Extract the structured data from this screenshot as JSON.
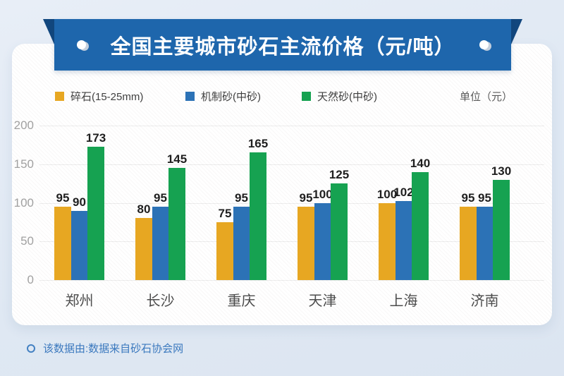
{
  "banner": {
    "title": "全国主要城市砂石主流价格（元/吨）",
    "bg_color": "#1e66ac",
    "fold_color": "#12477e"
  },
  "legend": {
    "items": [
      {
        "label": "碎石(15-25mm)",
        "color": "#e7a722"
      },
      {
        "label": "机制砂(中砂)",
        "color": "#2c72b6"
      },
      {
        "label": "天然砂(中砂)",
        "color": "#16a251"
      }
    ],
    "unit_label": "单位（元）"
  },
  "chart_data": {
    "type": "bar",
    "title": "全国主要城市砂石主流价格（元/吨）",
    "categories": [
      "郑州",
      "长沙",
      "重庆",
      "天津",
      "上海",
      "济南"
    ],
    "series": [
      {
        "name": "碎石(15-25mm)",
        "color": "#e7a722",
        "values": [
          95,
          80,
          75,
          95,
          100,
          95
        ]
      },
      {
        "name": "机制砂(中砂)",
        "color": "#2c72b6",
        "values": [
          90,
          95,
          95,
          100,
          102,
          95
        ]
      },
      {
        "name": "天然砂(中砂)",
        "color": "#16a251",
        "values": [
          173,
          145,
          165,
          125,
          140,
          130
        ]
      }
    ],
    "xlabel": "",
    "ylabel": "",
    "ylim": [
      0,
      200
    ],
    "yticks": [
      0,
      50,
      100,
      150,
      200
    ],
    "grid": true,
    "legend_position": "top",
    "unit": "元"
  },
  "footer": {
    "text": "该数据由:数据来自砂石协会网"
  }
}
